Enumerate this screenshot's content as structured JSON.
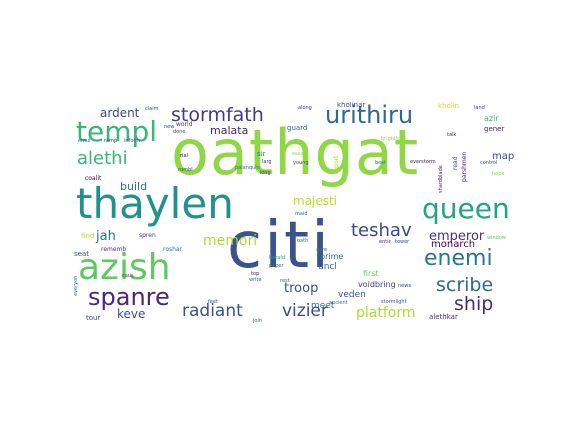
{
  "words": [
    {
      "text": "oathgat",
      "color": "#8fd744",
      "size": 62
    },
    {
      "text": "citi",
      "color": "#3b528b",
      "size": 64
    },
    {
      "text": "thaylen",
      "color": "#21918c",
      "size": 42
    },
    {
      "text": "azish",
      "color": "#5ec962",
      "size": 36
    },
    {
      "text": "templ",
      "color": "#35b779",
      "size": 28
    },
    {
      "text": "queen",
      "color": "#21a585",
      "size": 28
    },
    {
      "text": "urithiru",
      "color": "#31688e",
      "size": 24
    },
    {
      "text": "spanre",
      "color": "#482878",
      "size": 24
    },
    {
      "text": "enemi",
      "color": "#29798e",
      "size": 22
    },
    {
      "text": "scribe",
      "color": "#31688e",
      "size": 19
    },
    {
      "text": "ship",
      "color": "#472d7b",
      "size": 19
    },
    {
      "text": "stormfath",
      "color": "#443a83",
      "size": 19
    },
    {
      "text": "alethi",
      "color": "#35b779",
      "size": 18
    },
    {
      "text": "teshav",
      "color": "#3e4989",
      "size": 18
    },
    {
      "text": "radiant",
      "color": "#3b528b",
      "size": 17
    },
    {
      "text": "vizier",
      "color": "#3e4989",
      "size": 17
    },
    {
      "text": "platform",
      "color": "#addc30",
      "size": 14
    },
    {
      "text": "memori",
      "color": "#addc30",
      "size": 14
    },
    {
      "text": "emperor",
      "color": "#46327e",
      "size": 13
    },
    {
      "text": "troop",
      "color": "#3b528b",
      "size": 13
    },
    {
      "text": "jah",
      "color": "#2a788e",
      "size": 13
    },
    {
      "text": "keve",
      "color": "#3e4989",
      "size": 12
    },
    {
      "text": "ardent",
      "color": "#3e4989",
      "size": 12
    },
    {
      "text": "majesti",
      "color": "#bddf26",
      "size": 12
    },
    {
      "text": "build",
      "color": "#2c728e",
      "size": 11
    },
    {
      "text": "malata",
      "color": "#481f70",
      "size": 11
    },
    {
      "text": "monarch",
      "color": "#440154",
      "size": 10
    },
    {
      "text": "map",
      "color": "#3e4989",
      "size": 10
    },
    {
      "text": "veden",
      "color": "#3b528b",
      "size": 9
    },
    {
      "text": "meet",
      "color": "#287d8e",
      "size": 9
    },
    {
      "text": "uncl",
      "color": "#31688e",
      "size": 9
    },
    {
      "text": "voidbring",
      "color": "#443a83",
      "size": 8
    },
    {
      "text": "first",
      "color": "#6ece58",
      "size": 8
    },
    {
      "text": "prime",
      "color": "#2c728e",
      "size": 8
    },
    {
      "text": "azir",
      "color": "#35b779",
      "size": 8
    },
    {
      "text": "kholinar",
      "color": "#3b528b",
      "size": 7
    },
    {
      "text": "kholin",
      "color": "#d8e219",
      "size": 7
    },
    {
      "text": "gener",
      "color": "#482475",
      "size": 7
    },
    {
      "text": "guard",
      "color": "#31688e",
      "size": 7
    },
    {
      "text": "alethkar",
      "color": "#472d7b",
      "size": 7
    },
    {
      "text": "seat",
      "color": "#3b528b",
      "size": 7
    },
    {
      "text": "tour",
      "color": "#3e4989",
      "size": 7
    },
    {
      "text": "find",
      "color": "#bddf26",
      "size": 7
    },
    {
      "text": "rememb",
      "color": "#472d7b",
      "size": 6
    },
    {
      "text": "spren",
      "color": "#46327e",
      "size": 6
    },
    {
      "text": "roshar",
      "color": "#2a788e",
      "size": 6
    },
    {
      "text": "coalit",
      "color": "#440154",
      "size": 6
    },
    {
      "text": "sir",
      "color": "#2c728e",
      "size": 7
    },
    {
      "text": "world",
      "color": "#46327e",
      "size": 6
    },
    {
      "text": "read",
      "color": "#3e4989",
      "size": 6
    },
    {
      "text": "parshmen",
      "color": "#481f70",
      "size": 6
    },
    {
      "text": "everstorm",
      "color": "#482878",
      "size": 5
    },
    {
      "text": "brightlord",
      "color": "#8fd744",
      "size": 5
    },
    {
      "text": "report",
      "color": "#a0da39",
      "size": 6
    },
    {
      "text": "herald",
      "color": "#1f9e89",
      "size": 5
    },
    {
      "text": "young",
      "color": "#3b528b",
      "size": 5
    },
    {
      "text": "stormlight",
      "color": "#3b528b",
      "size": 5
    },
    {
      "text": "palanquin",
      "color": "#2c728e",
      "size": 5
    },
    {
      "text": "essay",
      "color": "#8fd744",
      "size": 5
    },
    {
      "text": "king",
      "color": "#472d7b",
      "size": 5
    },
    {
      "text": "larg",
      "color": "#472d7b",
      "size": 5
    },
    {
      "text": "inform",
      "color": "#3e4989",
      "size": 5
    },
    {
      "text": "ramp",
      "color": "#46327e",
      "size": 5
    },
    {
      "text": "emul",
      "color": "#2c728e",
      "size": 5
    },
    {
      "text": "claim",
      "color": "#3e4989",
      "size": 5
    },
    {
      "text": "along",
      "color": "#472d7b",
      "size": 5
    },
    {
      "text": "land",
      "color": "#3e4989",
      "size": 5
    },
    {
      "text": "talk",
      "color": "#46327e",
      "size": 5
    },
    {
      "text": "control",
      "color": "#3b528b",
      "size": 5
    },
    {
      "text": "hope",
      "color": "#8fd744",
      "size": 5
    },
    {
      "text": "window",
      "color": "#5ec962",
      "size": 5
    },
    {
      "text": "shardblade",
      "color": "#481f70",
      "size": 5
    },
    {
      "text": "tower",
      "color": "#3e4989",
      "size": 5
    },
    {
      "text": "entir",
      "color": "#481f70",
      "size": 5
    },
    {
      "text": "paper",
      "color": "#2c728e",
      "size": 5
    },
    {
      "text": "write",
      "color": "#3b528b",
      "size": 5
    },
    {
      "text": "rest",
      "color": "#31688e",
      "size": 5
    },
    {
      "text": "join",
      "color": "#31688e",
      "size": 5
    },
    {
      "text": "top",
      "color": "#482878",
      "size": 5
    },
    {
      "text": "oath",
      "color": "#31688e",
      "size": 5
    },
    {
      "text": "rial",
      "color": "#440154",
      "size": 5
    },
    {
      "text": "rumbl",
      "color": "#46327e",
      "size": 5
    },
    {
      "text": "caus",
      "color": "#472d7b",
      "size": 5
    },
    {
      "text": "everyon",
      "color": "#2c728e",
      "size": 5
    },
    {
      "text": "feet",
      "color": "#3e4989",
      "size": 5
    },
    {
      "text": "done",
      "color": "#3e4989",
      "size": 5
    },
    {
      "text": "new",
      "color": "#3e4989",
      "size": 5
    },
    {
      "text": "agre",
      "color": "#2c728e",
      "size": 5
    },
    {
      "text": "ancient",
      "color": "#2c728e",
      "size": 5
    },
    {
      "text": "maid",
      "color": "#2c728e",
      "size": 5
    },
    {
      "text": "best",
      "color": "#2c728e",
      "size": 5
    },
    {
      "text": "news",
      "color": "#3e4989",
      "size": 5
    }
  ]
}
